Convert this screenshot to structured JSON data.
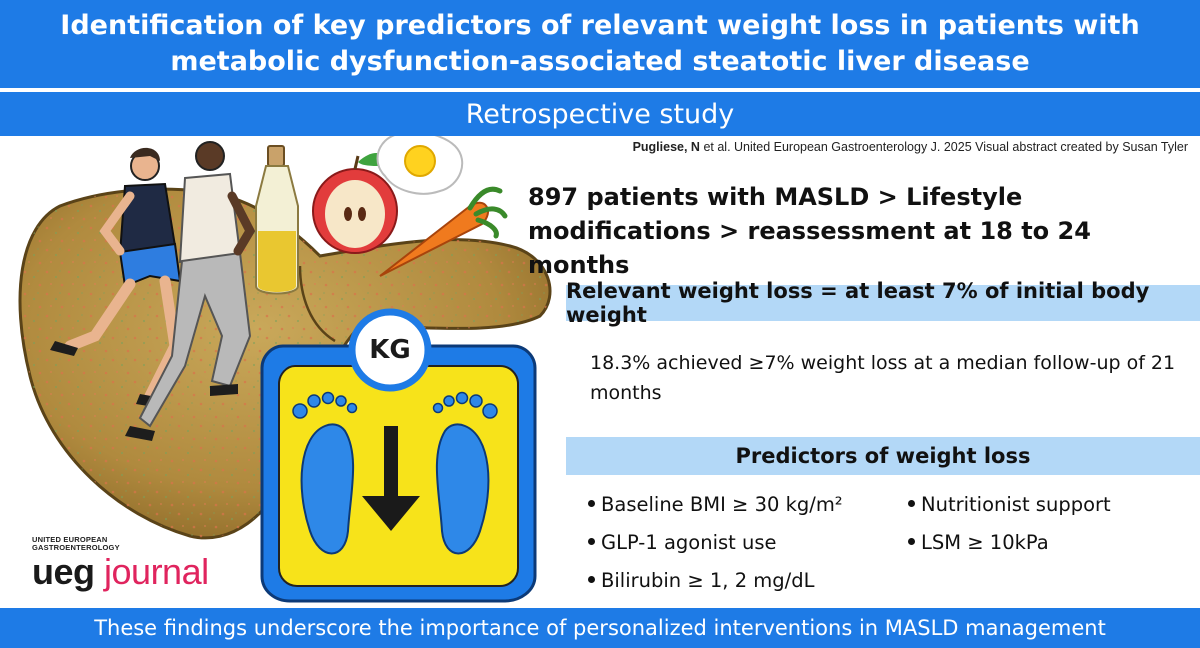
{
  "header": {
    "title_line1": "Identification of key predictors of relevant weight loss in patients with",
    "title_line2": "metabolic dysfunction-associated steatotic liver disease",
    "subtitle": "Retrospective study"
  },
  "citation": {
    "author": "Pugliese, N",
    "rest": " et al. United European Gastroenterology J. 2025 Visual abstract created by Susan Tyler"
  },
  "main": {
    "headline": "897 patients with MASLD > Lifestyle modifications > reassessment at 18 to 24 months",
    "definition": "Relevant weight loss = at least 7% of initial body weight",
    "result": "18.3% achieved ≥7% weight loss at a median follow-up of 21 months",
    "predictors_title": "Predictors of weight loss",
    "predictors": [
      "Baseline BMI ≥ 30 kg/m²",
      "GLP-1 agonist use",
      "Bilirubin ≥ 1, 2 mg/dL",
      "Nutritionist support",
      "LSM ≥ 10kPa"
    ]
  },
  "illustration": {
    "scale_label": "KG"
  },
  "logo": {
    "line1": "UNITED EUROPEAN",
    "line2": "GASTROENTEROLOGY",
    "ueg": "ueg",
    "journal": "journal"
  },
  "footer": {
    "text": "These findings underscore the importance of personalized interventions in MASLD management"
  },
  "colors": {
    "brand_blue": "#1e7be6",
    "band_blue": "#b3d8f7",
    "logo_pink": "#e0245e"
  }
}
